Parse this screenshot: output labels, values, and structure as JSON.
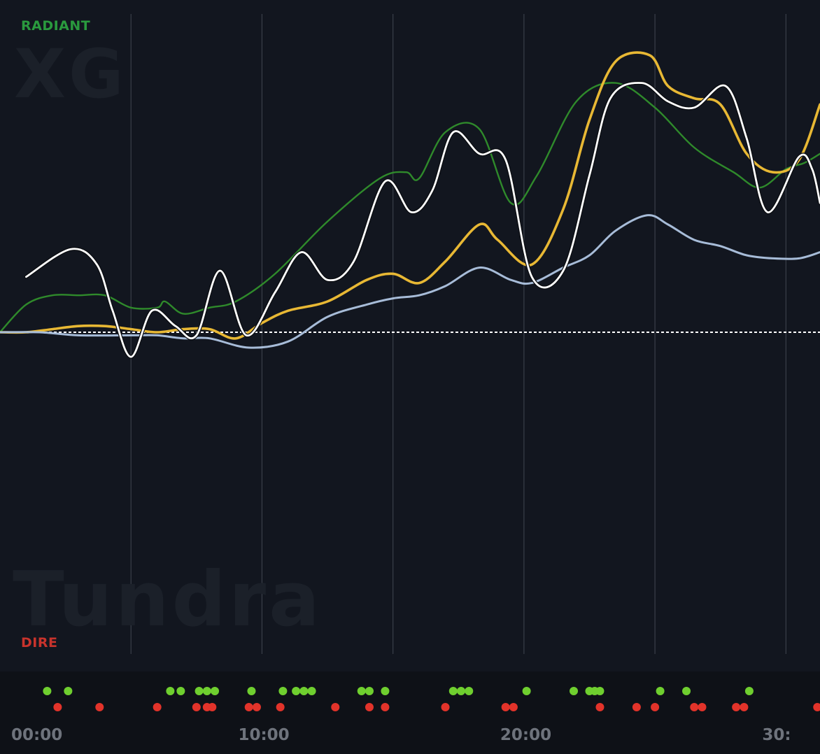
{
  "labels": {
    "radiant": "RADIANT",
    "dire": "DIRE",
    "team_top": "XG",
    "team_bottom": "Tundra"
  },
  "colors": {
    "background": "#12161f",
    "timeline_band": "#0e1117",
    "grid": "#3a3f49",
    "radiant_green": "#2a9a3e",
    "dire_red": "#c8332c",
    "event_green": "#6fcf2f",
    "event_red": "#e2332a",
    "baseline": "#ffffff"
  },
  "chart_data": {
    "type": "line",
    "title": "",
    "xlabel": "",
    "ylabel": "",
    "x_ticks": [
      "00:00",
      "10:00",
      "20:00",
      "30:"
    ],
    "x_tick_values": [
      0,
      10,
      20,
      30
    ],
    "xlim": [
      0,
      31.3
    ],
    "ylim": [
      -1,
      1.07
    ],
    "grid_x": true,
    "legend": "none",
    "series": [
      {
        "color": "#2f8a2b",
        "width": 2.4,
        "points": [
          [
            0,
            0.0
          ],
          [
            1,
            0.09
          ],
          [
            2,
            0.12
          ],
          [
            3,
            0.12
          ],
          [
            4,
            0.12
          ],
          [
            5,
            0.08
          ],
          [
            6,
            0.08
          ],
          [
            6.3,
            0.1
          ],
          [
            7,
            0.06
          ],
          [
            8,
            0.08
          ],
          [
            9,
            0.1
          ],
          [
            10.5,
            0.19
          ],
          [
            12.5,
            0.36
          ],
          [
            14.5,
            0.5
          ],
          [
            15.5,
            0.52
          ],
          [
            16,
            0.5
          ],
          [
            17,
            0.65
          ],
          [
            18.3,
            0.66
          ],
          [
            19.5,
            0.42
          ],
          [
            20.5,
            0.51
          ],
          [
            22,
            0.75
          ],
          [
            23.5,
            0.81
          ],
          [
            25,
            0.73
          ],
          [
            26.5,
            0.6
          ],
          [
            28,
            0.52
          ],
          [
            29,
            0.47
          ],
          [
            30,
            0.53
          ],
          [
            30.7,
            0.55
          ],
          [
            31.3,
            0.58
          ]
        ]
      },
      {
        "color": "#e8b834",
        "width": 3.6,
        "points": [
          [
            0,
            0.0
          ],
          [
            1,
            0.0
          ],
          [
            2,
            0.01
          ],
          [
            3,
            0.02
          ],
          [
            4,
            0.02
          ],
          [
            5,
            0.01
          ],
          [
            6,
            0.0
          ],
          [
            7,
            0.01
          ],
          [
            8,
            0.01
          ],
          [
            9,
            -0.02
          ],
          [
            10,
            0.03
          ],
          [
            11,
            0.07
          ],
          [
            12.5,
            0.1
          ],
          [
            14,
            0.17
          ],
          [
            15,
            0.19
          ],
          [
            16,
            0.16
          ],
          [
            17,
            0.23
          ],
          [
            18.3,
            0.35
          ],
          [
            19,
            0.3
          ],
          [
            20.3,
            0.22
          ],
          [
            21.5,
            0.4
          ],
          [
            22.5,
            0.69
          ],
          [
            23.5,
            0.88
          ],
          [
            24.8,
            0.9
          ],
          [
            25.5,
            0.8
          ],
          [
            26.5,
            0.76
          ],
          [
            27.5,
            0.74
          ],
          [
            28.5,
            0.58
          ],
          [
            29.5,
            0.52
          ],
          [
            30.5,
            0.56
          ],
          [
            31.3,
            0.74
          ]
        ]
      },
      {
        "color": "#a7bcd8",
        "width": 3.0,
        "points": [
          [
            0,
            0.0
          ],
          [
            1.5,
            0.0
          ],
          [
            3,
            -0.01
          ],
          [
            5,
            -0.01
          ],
          [
            6,
            -0.01
          ],
          [
            7,
            -0.02
          ],
          [
            8,
            -0.02
          ],
          [
            9.5,
            -0.05
          ],
          [
            11,
            -0.03
          ],
          [
            12.5,
            0.05
          ],
          [
            14,
            0.09
          ],
          [
            15,
            0.11
          ],
          [
            16,
            0.12
          ],
          [
            17,
            0.15
          ],
          [
            18.3,
            0.21
          ],
          [
            19.5,
            0.17
          ],
          [
            20.3,
            0.16
          ],
          [
            21.5,
            0.21
          ],
          [
            22.5,
            0.25
          ],
          [
            23.5,
            0.33
          ],
          [
            24.7,
            0.38
          ],
          [
            25.5,
            0.35
          ],
          [
            26.5,
            0.3
          ],
          [
            27.5,
            0.28
          ],
          [
            28.5,
            0.25
          ],
          [
            29.5,
            0.24
          ],
          [
            30.5,
            0.24
          ],
          [
            31.3,
            0.26
          ]
        ]
      },
      {
        "color": "#ffffff",
        "width": 2.8,
        "outline": true,
        "points": [
          [
            1,
            0.18
          ],
          [
            2.7,
            0.27
          ],
          [
            3.7,
            0.22
          ],
          [
            4.3,
            0.07
          ],
          [
            5,
            -0.08
          ],
          [
            5.8,
            0.07
          ],
          [
            6.7,
            0.02
          ],
          [
            7.5,
            -0.01
          ],
          [
            8.4,
            0.2
          ],
          [
            9.4,
            -0.01
          ],
          [
            10.5,
            0.13
          ],
          [
            11.5,
            0.26
          ],
          [
            12.5,
            0.17
          ],
          [
            13.5,
            0.23
          ],
          [
            14.7,
            0.49
          ],
          [
            15.7,
            0.39
          ],
          [
            16.5,
            0.46
          ],
          [
            17.3,
            0.65
          ],
          [
            18.3,
            0.58
          ],
          [
            19.3,
            0.56
          ],
          [
            20.3,
            0.18
          ],
          [
            21.5,
            0.2
          ],
          [
            22.5,
            0.51
          ],
          [
            23.3,
            0.76
          ],
          [
            24.5,
            0.81
          ],
          [
            25.5,
            0.75
          ],
          [
            26.5,
            0.73
          ],
          [
            27.7,
            0.8
          ],
          [
            28.5,
            0.63
          ],
          [
            29.3,
            0.39
          ],
          [
            30.5,
            0.57
          ],
          [
            31.0,
            0.53
          ],
          [
            31.3,
            0.42
          ]
        ]
      }
    ],
    "events": {
      "radiant_times": [
        1.8,
        2.6,
        6.5,
        6.9,
        7.6,
        7.9,
        8.2,
        9.6,
        10.8,
        11.3,
        11.6,
        11.9,
        13.8,
        14.1,
        14.7,
        17.3,
        17.6,
        17.9,
        20.1,
        21.9,
        22.5,
        22.7,
        22.9,
        25.2,
        26.2,
        28.6
      ],
      "dire_times": [
        2.2,
        3.8,
        6.0,
        7.5,
        7.9,
        8.1,
        9.5,
        9.8,
        10.7,
        12.8,
        14.1,
        14.7,
        17.0,
        19.3,
        19.6,
        22.9,
        24.3,
        25.0,
        26.5,
        26.8,
        28.1,
        28.4,
        31.2
      ]
    }
  }
}
